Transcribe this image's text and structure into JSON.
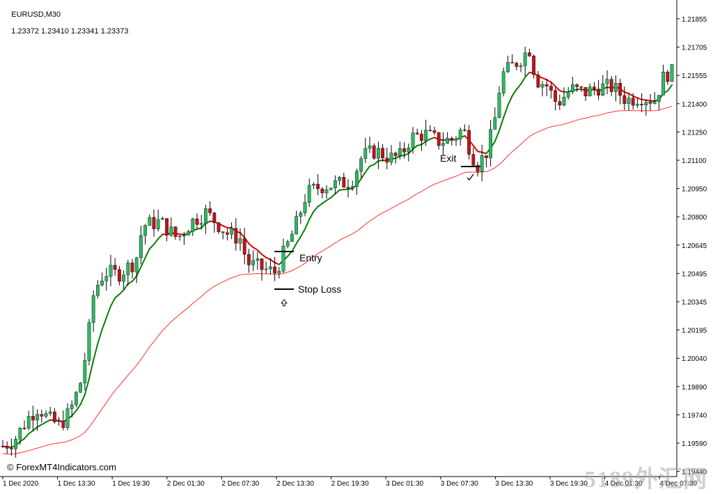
{
  "header": {
    "symbol": "EURUSD,M30",
    "quotes": "1.23372 1.23410 1.23341 1.23373"
  },
  "chart_data": {
    "type": "candlestick",
    "price_axis": {
      "ticks": [
        "1.21855",
        "1.21705",
        "1.21555",
        "1.21400",
        "1.21250",
        "1.21100",
        "1.20950",
        "1.20800",
        "1.20645",
        "1.20495",
        "1.20345",
        "1.20195",
        "1.20040",
        "1.19890",
        "1.19740",
        "1.19590",
        "1.19440"
      ],
      "range": [
        1.1944,
        1.2185
      ]
    },
    "time_axis": {
      "ticks": [
        "1 Dec 2020",
        "1 Dec 13:30",
        "1 Dec 19:30",
        "2 Dec 01:30",
        "2 Dec 07:30",
        "2 Dec 13:30",
        "2 Dec 19:30",
        "3 Dec 01:30",
        "3 Dec 07:30",
        "3 Dec 13:30",
        "3 Dec 19:30",
        "4 Dec 01:30",
        "4 Dec 07:30"
      ]
    },
    "colors": {
      "bull": "#2db864",
      "bear": "#c0141c",
      "fast_ma_up": "#008000",
      "fast_ma_down": "#e00000",
      "slow_ma": "#ff3030",
      "axis": "#000000"
    },
    "annotations": [
      {
        "label": "Entry",
        "level": 1.206
      },
      {
        "label": "Stop Loss",
        "level": 1.204
      },
      {
        "label": "Exit",
        "level": 1.2106
      }
    ],
    "arrow_up_icon": "thin-up-arrow-icon",
    "check_icon": "check-mark-icon"
  },
  "footer": {
    "copyright": "© ForexMT4Indicators.com",
    "watermark": "5189外汇网"
  }
}
